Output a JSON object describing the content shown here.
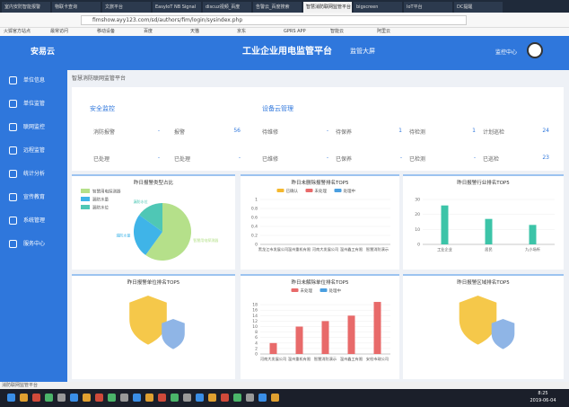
{
  "browser": {
    "tabs": [
      "室内安防智能报警",
      "物联卡查询",
      "文旅平台",
      "EasyIoT NB Signal",
      "discuz视频_百度",
      "告警云_百度搜索",
      "智慧消防联网监管平台",
      "bigscreen",
      "IoT平台",
      "DC提醒"
    ],
    "url": "fimshow.ayy123.com/sd/authors/fim/login/sysindex.php",
    "bookmarks": [
      "火狐官方站点",
      "最常访问",
      "移动设备",
      "百度",
      "天猫",
      "京东",
      "GPRS APP",
      "智能云",
      "阿里云"
    ]
  },
  "header": {
    "logo": "安易云",
    "title": "工业企业用电监管平台",
    "screen": "监管大屏",
    "center": "监控中心"
  },
  "sidebar": [
    "单位信息",
    "单位监管",
    "联网监控",
    "远程监管",
    "统计分析",
    "宣传教育",
    "系统管理",
    "服务中心"
  ],
  "breadcrumb": "智慧消防联网监管平台",
  "safety": {
    "title": "安全监控",
    "cells": [
      [
        "消防报警",
        "-"
      ],
      [
        "报警",
        56
      ],
      [
        "已处理",
        "-"
      ],
      [
        "已处理",
        "-"
      ]
    ]
  },
  "devices": {
    "title": "设备云管理",
    "cells": [
      [
        "待维修",
        "-"
      ],
      [
        "待保养",
        1
      ],
      [
        "待检测",
        1
      ],
      [
        "计划巡检",
        24
      ],
      [
        "已维修",
        "-"
      ],
      [
        "已保养",
        "-"
      ],
      [
        "已检测",
        "-"
      ],
      [
        "已巡检",
        23
      ]
    ]
  },
  "charts": [
    {
      "type": "pie",
      "title": "昨日报警类型占比",
      "categories": [
        "智慧用电探测器",
        "漏防水量",
        "漏防水位"
      ],
      "values": [
        60,
        25,
        15
      ],
      "colors": [
        "#b5e08a",
        "#3fb4e8",
        "#4fc7b5"
      ]
    },
    {
      "type": "bar",
      "title": "昨日未删除报警排名TOP5",
      "categories": [
        "黑龙江市发展公司",
        "温州重机有限",
        "河南大发展公司",
        "温州鑫工有限",
        "智慧消防演示"
      ],
      "series": [
        {
          "name": "已确认",
          "color": "#f5b82e",
          "values": [
            0,
            0,
            0,
            0,
            0
          ]
        },
        {
          "name": "未处理",
          "color": "#e86a6a",
          "values": [
            0,
            0,
            0,
            0,
            0
          ]
        },
        {
          "name": "处理中",
          "color": "#4a9fe0",
          "values": [
            0,
            0,
            0,
            0,
            0
          ]
        }
      ],
      "ylim": [
        0,
        1
      ],
      "yticks": [
        0,
        0.2,
        0.4,
        0.6,
        0.8,
        1
      ]
    },
    {
      "type": "bar",
      "title": "昨日报警行业排名TOP5",
      "categories": [
        "工业企业",
        "居民",
        "九小场所"
      ],
      "series": [
        {
          "color": "#3cc4a8",
          "values": [
            26,
            17,
            13
          ]
        }
      ],
      "ylim": [
        0,
        30
      ],
      "yticks": [
        0,
        10,
        20,
        30
      ]
    },
    {
      "type": "shield",
      "title": "昨日报警单位排名TOP5"
    },
    {
      "type": "bar",
      "title": "昨日未解除单位排名TOP5",
      "categories": [
        "河南大发展公司",
        "温州重机有限",
        "智慧消防演示",
        "温州鑫工有限",
        "安检市政公司"
      ],
      "series": [
        {
          "name": "未处理",
          "color": "#e86a6a",
          "values": [
            4,
            10,
            12,
            14,
            19
          ]
        },
        {
          "name": "处理中",
          "color": "#4a9fe0",
          "values": [
            0,
            0,
            0,
            0,
            0
          ]
        }
      ],
      "ylim": [
        0,
        20
      ],
      "yticks": [
        0,
        2,
        4,
        6,
        8,
        10,
        12,
        14,
        16,
        18
      ]
    },
    {
      "type": "shield",
      "title": "昨日报警区域排名TOP5"
    }
  ],
  "status": "消防联网监管平台",
  "taskbar": {
    "time": "8:25",
    "date": "2019-06-04"
  }
}
